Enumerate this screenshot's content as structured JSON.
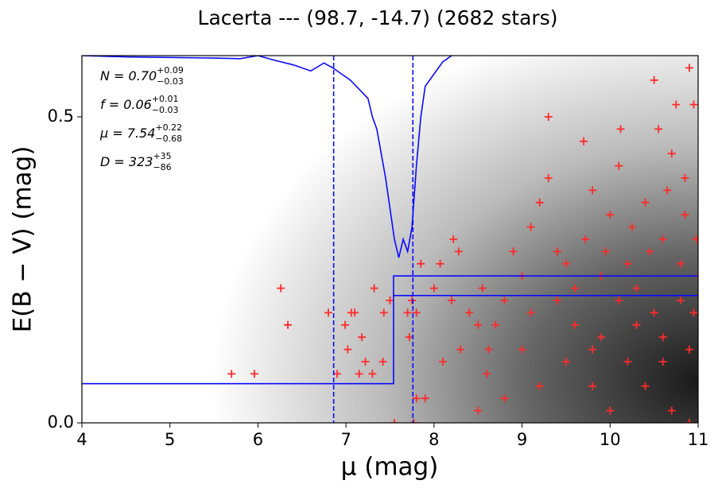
{
  "chart_data": {
    "type": "scatter",
    "title": "Lacerta --- (98.7, -14.7) (2682 stars)",
    "xlabel": "μ (mag)",
    "ylabel": "E(B − V) (mag)",
    "xlim": [
      4,
      11
    ],
    "xticks": [
      4,
      5,
      6,
      7,
      8,
      9,
      10,
      11
    ],
    "ylim": [
      0,
      0.6
    ],
    "yticks": [
      {
        "value": 0,
        "label": "0.0"
      },
      0.5
    ],
    "annotations": [
      {
        "label": "N = 0.70",
        "sup": "+0.09",
        "sub": "−0.03"
      },
      {
        "label": "f = 0.06",
        "sup": "+0.01",
        "sub": "−0.03"
      },
      {
        "label": "μ = 7.54",
        "sup": "+0.22",
        "sub": "−0.68"
      },
      {
        "label": "D = 323",
        "sup": "+35",
        "sub": "−86"
      }
    ],
    "points": {
      "color": "#ff2a2a",
      "x": [
        5.7,
        5.96,
        6.26,
        6.34,
        6.8,
        6.9,
        6.99,
        7.02,
        7.06,
        7.1,
        7.15,
        7.3,
        7.22,
        7.18,
        7.32,
        7.42,
        7.43,
        7.5,
        7.7,
        7.72,
        7.8,
        7.75,
        7.9,
        7.8,
        7.77,
        7.55,
        7.85,
        8.07,
        8.0,
        8.1,
        8.3,
        8.2,
        8.22,
        8.28,
        8.4,
        8.5,
        8.55,
        8.6,
        8.62,
        8.8,
        8.9,
        9.3,
        9.0,
        9.1,
        9.2,
        9.3,
        9.4,
        9.5,
        9.6,
        9.7,
        9.72,
        9.8,
        9.9,
        10.0,
        10.1,
        10.12,
        10.2,
        10.3,
        10.4,
        10.5,
        10.55,
        10.6,
        10.7,
        10.75,
        10.8,
        10.85,
        10.9,
        10.95,
        10.98,
        10.9,
        10.6,
        10.4,
        10.2,
        10.0,
        9.8,
        9.5,
        9.2,
        9.0,
        8.8,
        8.5,
        10.7,
        10.9,
        10.3,
        9.9,
        9.6,
        9.4,
        10.1,
        10.8,
        10.5,
        8.7,
        9.1,
        9.8,
        10.6,
        11.0,
        10.95,
        10.85,
        10.65,
        10.45,
        10.25,
        9.95
      ],
      "values": [
        0.08,
        0.08,
        0.22,
        0.16,
        0.18,
        0.08,
        0.16,
        0.12,
        0.18,
        0.18,
        0.08,
        0.08,
        0.1,
        0.14,
        0.22,
        0.1,
        0.18,
        0.2,
        0.18,
        0.14,
        0.18,
        0.2,
        0.04,
        0.04,
        0.0,
        0.0,
        0.26,
        0.26,
        0.22,
        0.1,
        0.12,
        0.2,
        0.3,
        0.28,
        0.18,
        0.16,
        0.22,
        0.08,
        0.12,
        0.2,
        0.28,
        0.5,
        0.24,
        0.32,
        0.36,
        0.4,
        0.2,
        0.26,
        0.22,
        0.46,
        0.3,
        0.38,
        0.14,
        0.34,
        0.42,
        0.48,
        0.26,
        0.22,
        0.36,
        0.56,
        0.48,
        0.3,
        0.44,
        0.52,
        0.2,
        0.4,
        0.58,
        0.52,
        0.3,
        0.12,
        0.1,
        0.06,
        0.1,
        0.02,
        0.06,
        0.1,
        0.06,
        0.12,
        0.04,
        0.02,
        0.02,
        0.0,
        0.16,
        0.24,
        0.16,
        0.28,
        0.2,
        0.26,
        0.18,
        0.16,
        0.18,
        0.12,
        0.14,
        0.24,
        0.18,
        0.34,
        0.38,
        0.28,
        0.32,
        0.28
      ]
    },
    "curve": {
      "color": "#0a0aff",
      "x": [
        4.0,
        4.5,
        5.0,
        5.5,
        5.8,
        6.0,
        6.2,
        6.4,
        6.6,
        6.75,
        6.85,
        6.95,
        7.05,
        7.15,
        7.25,
        7.3,
        7.35,
        7.4,
        7.45,
        7.5,
        7.55,
        7.6,
        7.65,
        7.7,
        7.75,
        7.8,
        7.85,
        7.9,
        8.0,
        8.1,
        8.2
      ],
      "values": [
        0.6,
        0.598,
        0.597,
        0.596,
        0.595,
        0.6,
        0.592,
        0.585,
        0.575,
        0.588,
        0.58,
        0.57,
        0.56,
        0.545,
        0.53,
        0.5,
        0.48,
        0.44,
        0.4,
        0.35,
        0.3,
        0.27,
        0.3,
        0.28,
        0.32,
        0.42,
        0.5,
        0.55,
        0.57,
        0.59,
        0.6
      ]
    },
    "model": [
      {
        "color": "#0a0aff",
        "x": [
          4,
          7.54,
          7.54,
          11
        ],
        "values": [
          0.064,
          0.064,
          0.24,
          0.24
        ]
      },
      {
        "color": "#0a0aff",
        "x": [
          7.54,
          11
        ],
        "values": [
          0.208,
          0.208
        ]
      }
    ],
    "vlines": {
      "color": "#0a0aff",
      "values": [
        6.86,
        7.76
      ]
    }
  }
}
